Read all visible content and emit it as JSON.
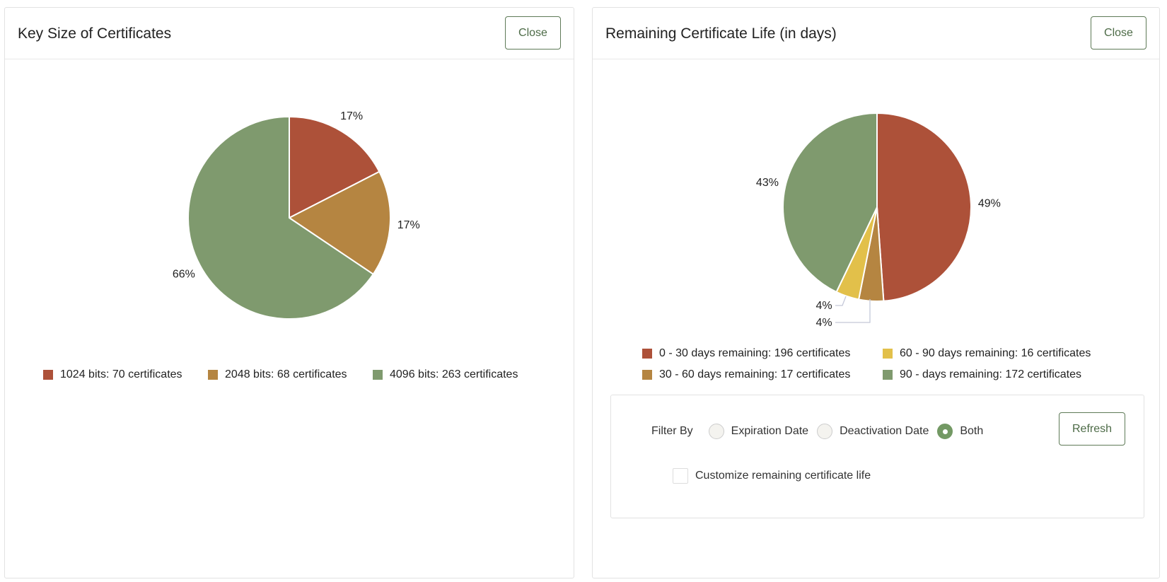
{
  "colors": {
    "red": "#ad5139",
    "tan": "#b58541",
    "yellow": "#e2c04a",
    "green": "#7f9a6e"
  },
  "left": {
    "title": "Key Size of Certificates",
    "close_label": "Close"
  },
  "right": {
    "title": "Remaining Certificate Life (in days)",
    "close_label": "Close",
    "filter": {
      "label": "Filter By",
      "options": [
        "Expiration Date",
        "Deactivation Date",
        "Both"
      ],
      "selected": "Both",
      "refresh_label": "Refresh",
      "customize_label": "Customize remaining certificate life",
      "customize_checked": false
    }
  },
  "chart_data": [
    {
      "type": "pie",
      "slices": [
        {
          "label": "1024 bits: 70 certificates",
          "value": 70,
          "pct": "17%",
          "color": "#ad5139"
        },
        {
          "label": "2048 bits: 68 certificates",
          "value": 68,
          "pct": "17%",
          "color": "#b58541"
        },
        {
          "label": "4096 bits: 263 certificates",
          "value": 263,
          "pct": "66%",
          "color": "#7f9a6e"
        }
      ],
      "legend": "bottom"
    },
    {
      "type": "pie",
      "slices": [
        {
          "label": "0 - 30 days remaining: 196 certificates",
          "value": 196,
          "pct": "49%",
          "color": "#ad5139"
        },
        {
          "label": "30 - 60 days remaining: 17 certificates",
          "value": 17,
          "pct": "4%",
          "color": "#b58541"
        },
        {
          "label": "60 - 90 days remaining: 16 certificates",
          "value": 16,
          "pct": "4%",
          "color": "#e2c04a"
        },
        {
          "label": "90 - days remaining: 172 certificates",
          "value": 172,
          "pct": "43%",
          "color": "#7f9a6e"
        }
      ],
      "legend": "bottom"
    }
  ]
}
